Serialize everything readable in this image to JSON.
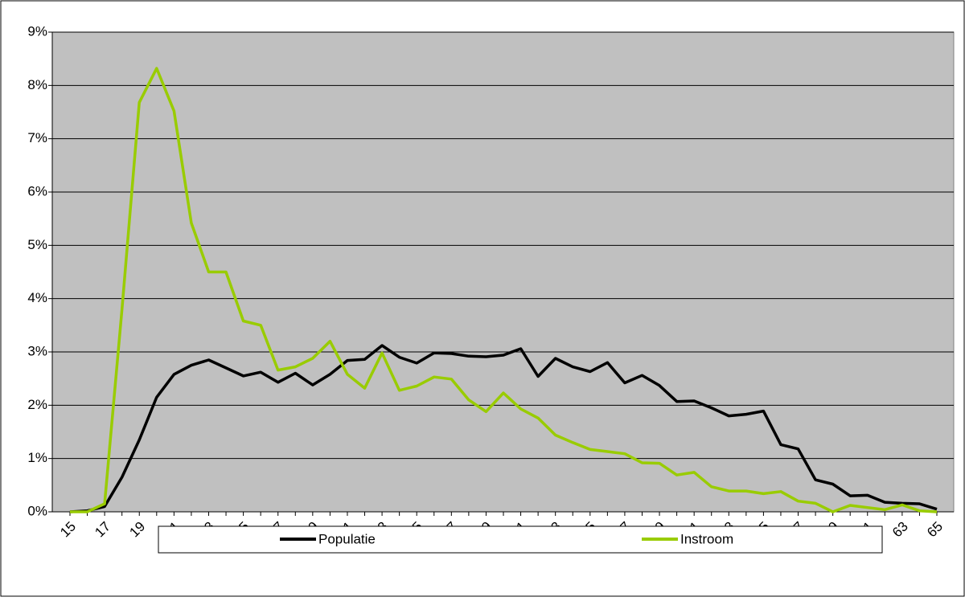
{
  "chart_data": {
    "type": "line",
    "categories": [
      "15",
      null,
      "17",
      null,
      "19",
      null,
      "21",
      null,
      "23",
      null,
      "25",
      null,
      "27",
      null,
      "29",
      null,
      "31",
      null,
      "33",
      null,
      "35",
      null,
      "37",
      null,
      "39",
      null,
      "41",
      null,
      "43",
      null,
      "45",
      null,
      "47",
      null,
      "49",
      null,
      "51",
      null,
      "53",
      null,
      "55",
      null,
      "57",
      null,
      "59",
      null,
      "61",
      null,
      "63",
      null,
      "65"
    ],
    "series": [
      {
        "name": "Populatie",
        "color": "#000000",
        "values": [
          0,
          0.02,
          0.1,
          0.65,
          1.35,
          2.15,
          2.58,
          2.75,
          2.85,
          2.7,
          2.55,
          2.62,
          2.43,
          2.6,
          2.38,
          2.58,
          2.84,
          2.86,
          3.12,
          2.9,
          2.79,
          2.98,
          2.97,
          2.92,
          2.91,
          2.94,
          3.06,
          2.54,
          2.88,
          2.72,
          2.63,
          2.8,
          2.42,
          2.56,
          2.37,
          2.07,
          2.08,
          1.95,
          1.8,
          1.83,
          1.89,
          1.26,
          1.18,
          0.6,
          0.52,
          0.3,
          0.31,
          0.18,
          0.16,
          0.15,
          0.05
        ]
      },
      {
        "name": "Instroom",
        "color": "#99cc00",
        "values": [
          0,
          0,
          0.15,
          3.8,
          7.68,
          8.32,
          7.52,
          5.42,
          4.5,
          4.5,
          3.58,
          3.5,
          2.66,
          2.72,
          2.88,
          3.2,
          2.58,
          2.32,
          2.98,
          2.28,
          2.36,
          2.53,
          2.49,
          2.1,
          1.88,
          2.23,
          1.93,
          1.76,
          1.44,
          1.3,
          1.17,
          1.13,
          1.09,
          0.92,
          0.91,
          0.69,
          0.74,
          0.47,
          0.39,
          0.39,
          0.34,
          0.38,
          0.2,
          0.16,
          0,
          0.12,
          0.08,
          0.04,
          0.13,
          0.02,
          0
        ]
      }
    ],
    "ylim": [
      0,
      9
    ],
    "yticks": [
      {
        "value": 0,
        "label": "0%"
      },
      {
        "value": 1,
        "label": "1%"
      },
      {
        "value": 2,
        "label": "2%"
      },
      {
        "value": 3,
        "label": "3%"
      },
      {
        "value": 4,
        "label": "4%"
      },
      {
        "value": 5,
        "label": "5%"
      },
      {
        "value": 6,
        "label": "6%"
      },
      {
        "value": 7,
        "label": "7%"
      },
      {
        "value": 8,
        "label": "8%"
      },
      {
        "value": 9,
        "label": "9%"
      }
    ],
    "grid": true,
    "legend": "bottom",
    "background": "#c0c0c0"
  }
}
